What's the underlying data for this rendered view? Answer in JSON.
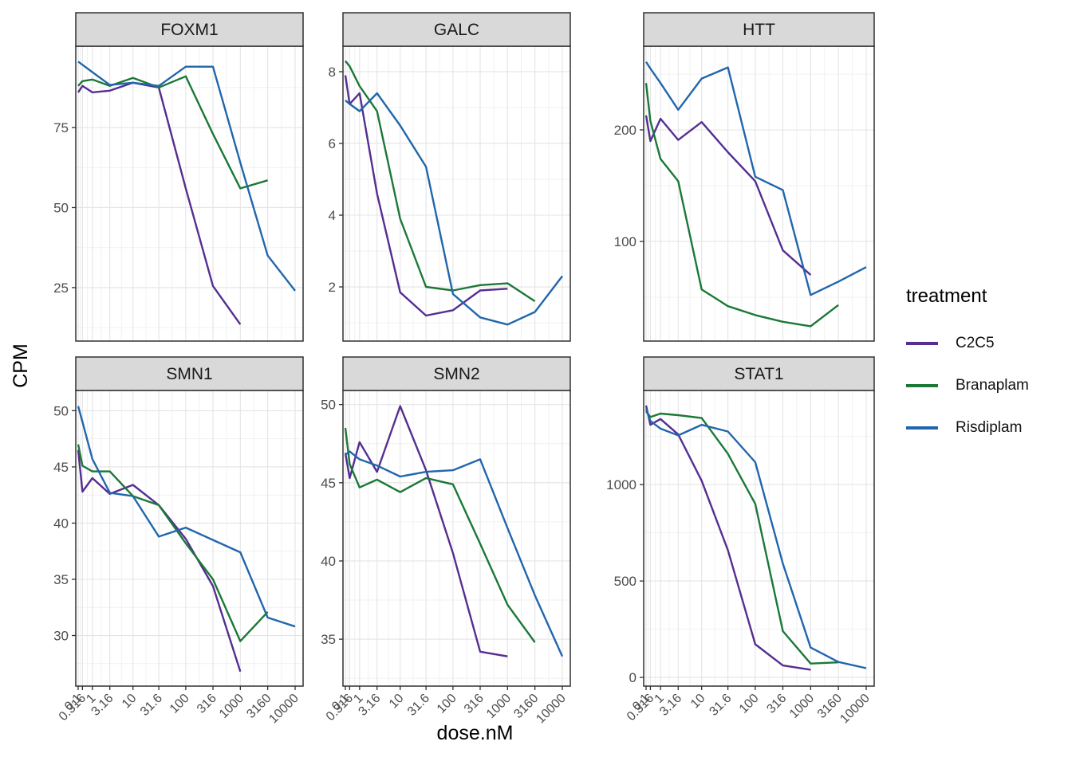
{
  "axes": {
    "x_title": "dose.nM",
    "y_title": "CPM"
  },
  "legend": {
    "title": "treatment",
    "position": "right",
    "entries": [
      {
        "label": "C2C5",
        "color": "#542e91"
      },
      {
        "label": "Branaplam",
        "color": "#1b7837"
      },
      {
        "label": "Risdiplam",
        "color": "#2166ac"
      }
    ]
  },
  "style": {
    "strip_fill": "#d9d9d9",
    "panel_border": "#303030",
    "grid_major": "#e4e4e4",
    "grid_minor": "#f1f1f1",
    "tick_text_color": "#4d4d4d",
    "strip_text_color": "#1a1a1a"
  },
  "chart_data": {
    "type": "line",
    "x_scale": "pseudo_log (log10(x+1))",
    "grid": true,
    "legend_position": "right",
    "doses": [
      0.1,
      0.316,
      1,
      3.16,
      10,
      31.6,
      100,
      316,
      1000,
      3160,
      10000
    ],
    "dose_labels": [
      "0.1",
      "0.316",
      "1",
      "3.16",
      "10",
      "31.6",
      "100",
      "316",
      "1000",
      "3160",
      "10000"
    ],
    "facets": [
      {
        "title": "FOXM1",
        "ylim": [
          8.3,
          100.4
        ],
        "yticks": [
          25,
          50,
          75
        ],
        "series": [
          {
            "name": "C2C5",
            "values": [
              86,
              88,
              86,
              86.5,
              89,
              87.5,
              56,
              25.5,
              13.5,
              null,
              null
            ]
          },
          {
            "name": "Branaplam",
            "values": [
              88,
              89.5,
              90,
              88,
              90.5,
              87.5,
              91,
              73,
              56,
              58.5,
              null
            ]
          },
          {
            "name": "Risdiplam",
            "values": [
              95.6,
              94.6,
              92.3,
              88.3,
              89,
              88,
              94,
              94,
              64,
              35,
              24
            ]
          }
        ]
      },
      {
        "title": "GALC",
        "ylim": [
          0.49,
          8.71
        ],
        "yticks": [
          2,
          4,
          6,
          8
        ],
        "series": [
          {
            "name": "C2C5",
            "values": [
              7.9,
              7.1,
              7.4,
              4.6,
              1.85,
              1.2,
              1.35,
              1.9,
              1.95,
              null,
              null
            ]
          },
          {
            "name": "Branaplam",
            "values": [
              8.3,
              8.15,
              7.6,
              6.9,
              3.9,
              2.0,
              1.9,
              2.05,
              2.1,
              1.6,
              null
            ]
          },
          {
            "name": "Risdiplam",
            "values": [
              7.2,
              7.1,
              6.9,
              7.4,
              6.5,
              5.35,
              1.8,
              1.15,
              0.95,
              1.3,
              2.3
            ]
          }
        ]
      },
      {
        "title": "HTT",
        "ylim": [
          10.7,
          275
        ],
        "yticks": [
          100,
          200
        ],
        "series": [
          {
            "name": "C2C5",
            "values": [
              213,
              190,
              210,
              191,
              207,
              180,
              154,
              92,
              70,
              null,
              null
            ]
          },
          {
            "name": "Branaplam",
            "values": [
              242,
              208,
              174,
              154,
              57,
              42,
              34,
              28,
              24,
              43,
              null
            ]
          },
          {
            "name": "Risdiplam",
            "values": [
              261,
              255,
              242,
              218,
              246,
              256,
              158,
              146,
              52,
              64,
              77
            ]
          }
        ]
      },
      {
        "title": "SMN1",
        "ylim": [
          25.5,
          51.8
        ],
        "yticks": [
          30,
          35,
          40,
          45,
          50
        ],
        "series": [
          {
            "name": "C2C5",
            "values": [
              46.5,
              42.8,
              44.0,
              42.6,
              43.4,
              41.6,
              38.6,
              34.4,
              26.8,
              null,
              null
            ]
          },
          {
            "name": "Branaplam",
            "values": [
              47.0,
              45.1,
              44.6,
              44.6,
              42.4,
              41.6,
              38.2,
              35.0,
              29.5,
              32.1,
              null
            ]
          },
          {
            "name": "Risdiplam",
            "values": [
              50.4,
              49.0,
              45.7,
              42.7,
              42.4,
              38.8,
              39.6,
              38.5,
              37.4,
              31.6,
              30.8
            ]
          }
        ]
      },
      {
        "title": "SMN2",
        "ylim": [
          32.0,
          50.9
        ],
        "yticks": [
          35,
          40,
          45,
          50
        ],
        "series": [
          {
            "name": "C2C5",
            "values": [
              46.9,
              45.3,
              47.6,
              45.7,
              49.9,
              45.8,
              40.5,
              34.2,
              33.9,
              null,
              null
            ]
          },
          {
            "name": "Branaplam",
            "values": [
              48.5,
              46.2,
              44.7,
              45.2,
              44.4,
              45.3,
              44.9,
              41.1,
              37.2,
              34.8,
              null
            ]
          },
          {
            "name": "Risdiplam",
            "values": [
              46.8,
              47.0,
              46.5,
              46.1,
              45.4,
              45.7,
              45.8,
              46.5,
              42.1,
              37.8,
              33.9
            ]
          }
        ]
      },
      {
        "title": "STAT1",
        "ylim": [
          -45,
          1488
        ],
        "yticks": [
          0,
          500,
          1000
        ],
        "series": [
          {
            "name": "C2C5",
            "values": [
              1410,
              1310,
              1340,
              1260,
              1020,
              660,
              172,
              62,
              40,
              null,
              null
            ]
          },
          {
            "name": "Branaplam",
            "values": [
              1380,
              1350,
              1368,
              1360,
              1345,
              1160,
              900,
              240,
              72,
              78,
              null
            ]
          },
          {
            "name": "Risdiplam",
            "values": [
              1392,
              1330,
              1290,
              1255,
              1310,
              1275,
              1116,
              590,
              155,
              80,
              48
            ]
          }
        ]
      }
    ]
  }
}
